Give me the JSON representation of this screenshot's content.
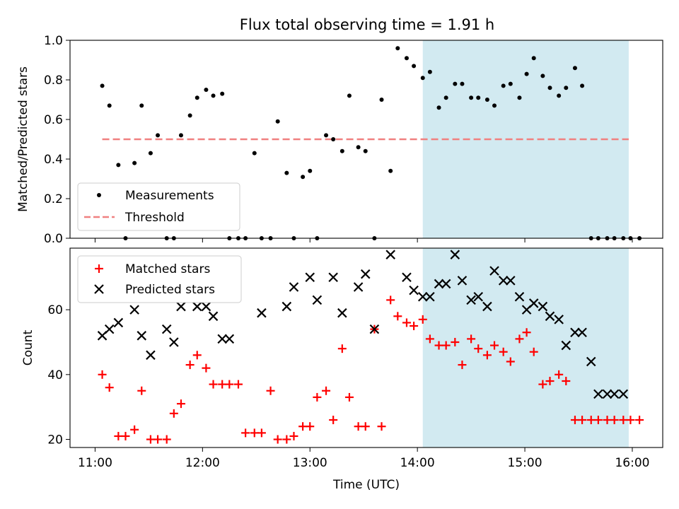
{
  "title": "Flux total observing time = 1.91 h",
  "colors": {
    "measurement": "#000000",
    "threshold": "#f08080",
    "matched": "#ff0000",
    "predicted": "#000000",
    "shade": "#add8e6"
  },
  "chart_data": [
    {
      "type": "scatter",
      "ylabel": "Matched/Predicted stars",
      "xlabel": "",
      "xlim": [
        "10:46",
        "16:17"
      ],
      "ylim": [
        0,
        1
      ],
      "yticks": [
        "0.0",
        "0.2",
        "0.4",
        "0.6",
        "0.8",
        "1.0"
      ],
      "shaded_span": [
        "14:03",
        "15:58"
      ],
      "legend": {
        "placement": "lower-left",
        "entries": [
          "Measurements",
          "Threshold"
        ]
      },
      "threshold": {
        "name": "Threshold",
        "x": [
          "11:04",
          "15:58"
        ],
        "y": 0.5
      },
      "series": [
        {
          "name": "Measurements",
          "x": [
            "11:04",
            "11:08",
            "11:13",
            "11:17",
            "11:22",
            "11:26",
            "11:31",
            "11:35",
            "11:40",
            "11:44",
            "11:48",
            "11:53",
            "11:57",
            "12:02",
            "12:06",
            "12:11",
            "12:15",
            "12:20",
            "12:24",
            "12:29",
            "12:33",
            "12:38",
            "12:42",
            "12:47",
            "12:51",
            "12:56",
            "13:00",
            "13:04",
            "13:09",
            "13:13",
            "13:18",
            "13:22",
            "13:27",
            "13:31",
            "13:36",
            "13:40",
            "13:45",
            "13:49",
            "13:54",
            "13:58",
            "14:03",
            "14:07",
            "14:12",
            "14:16",
            "14:21",
            "14:25",
            "14:30",
            "14:34",
            "14:39",
            "14:43",
            "14:48",
            "14:52",
            "14:57",
            "15:01",
            "15:05",
            "15:10",
            "15:14",
            "15:19",
            "15:23",
            "15:28",
            "15:32",
            "15:37",
            "15:41",
            "15:46",
            "15:50",
            "15:55",
            "15:59",
            "16:04"
          ],
          "values": [
            0.77,
            0.67,
            0.37,
            0.0,
            0.38,
            0.67,
            0.43,
            0.52,
            0.0,
            0.0,
            0.52,
            0.62,
            0.71,
            0.75,
            0.72,
            0.73,
            0.0,
            0.0,
            0.0,
            0.43,
            0.0,
            0.0,
            0.59,
            0.33,
            0.0,
            0.31,
            0.34,
            0.0,
            0.52,
            0.5,
            0.44,
            0.72,
            0.46,
            0.44,
            0.0,
            0.7,
            0.34,
            0.96,
            0.91,
            0.87,
            0.81,
            0.84,
            0.66,
            0.71,
            0.78,
            0.78,
            0.71,
            0.71,
            0.7,
            0.67,
            0.77,
            0.78,
            0.71,
            0.83,
            0.91,
            0.82,
            0.76,
            0.72,
            0.76,
            0.86,
            0.77,
            0.0,
            0.0,
            0.0,
            0.0,
            0.0,
            0.0,
            0.0
          ]
        }
      ]
    },
    {
      "type": "scatter",
      "ylabel": "Count",
      "xlabel": "Time (UTC)",
      "xlim": [
        "10:46",
        "16:17"
      ],
      "ylim": [
        17.5,
        79
      ],
      "yticks": [
        "20",
        "40",
        "60"
      ],
      "xticks": [
        "11:00",
        "12:00",
        "13:00",
        "14:00",
        "15:00",
        "16:00"
      ],
      "shaded_span": [
        "14:03",
        "15:58"
      ],
      "legend": {
        "placement": "upper-left",
        "entries": [
          "Matched stars",
          "Predicted stars"
        ]
      },
      "series": [
        {
          "name": "Matched stars",
          "x": [
            "11:04",
            "11:08",
            "11:13",
            "11:17",
            "11:22",
            "11:26",
            "11:31",
            "11:35",
            "11:40",
            "11:44",
            "11:48",
            "11:53",
            "11:57",
            "12:02",
            "12:06",
            "12:11",
            "12:15",
            "12:20",
            "12:24",
            "12:29",
            "12:33",
            "12:38",
            "12:42",
            "12:47",
            "12:51",
            "12:56",
            "13:00",
            "13:04",
            "13:09",
            "13:13",
            "13:18",
            "13:22",
            "13:27",
            "13:31",
            "13:36",
            "13:40",
            "13:45",
            "13:49",
            "13:54",
            "13:58",
            "14:03",
            "14:07",
            "14:12",
            "14:16",
            "14:21",
            "14:25",
            "14:30",
            "14:34",
            "14:39",
            "14:43",
            "14:48",
            "14:52",
            "14:57",
            "15:01",
            "15:05",
            "15:10",
            "15:14",
            "15:19",
            "15:23",
            "15:28",
            "15:32",
            "15:37",
            "15:41",
            "15:46",
            "15:50",
            "15:55",
            "15:59",
            "16:04"
          ],
          "values": [
            40,
            36,
            21,
            21,
            23,
            35,
            20,
            20,
            20,
            28,
            31,
            43,
            46,
            42,
            37,
            37,
            37,
            37,
            22,
            22,
            22,
            35,
            20,
            20,
            21,
            24,
            24,
            33,
            35,
            26,
            48,
            33,
            24,
            24,
            54,
            24,
            63,
            58,
            56,
            55,
            57,
            51,
            49,
            49,
            50,
            43,
            51,
            48,
            46,
            49,
            47,
            44,
            51,
            53,
            47,
            37,
            38,
            40,
            38,
            26,
            26,
            26,
            26,
            26,
            26,
            26,
            26,
            26
          ]
        },
        {
          "name": "Predicted stars",
          "x": [
            "11:04",
            "11:08",
            "11:13",
            "11:22",
            "11:26",
            "11:31",
            "11:40",
            "11:44",
            "11:48",
            "11:57",
            "12:02",
            "12:06",
            "12:11",
            "12:15",
            "12:33",
            "12:47",
            "12:51",
            "13:00",
            "13:04",
            "13:13",
            "13:18",
            "13:27",
            "13:31",
            "13:36",
            "13:45",
            "13:54",
            "13:58",
            "14:03",
            "14:07",
            "14:12",
            "14:16",
            "14:21",
            "14:25",
            "14:30",
            "14:34",
            "14:39",
            "14:43",
            "14:48",
            "14:52",
            "14:57",
            "15:01",
            "15:05",
            "15:10",
            "15:14",
            "15:19",
            "15:23",
            "15:28",
            "15:32",
            "15:37",
            "15:41",
            "15:46",
            "15:50",
            "15:55"
          ],
          "values": [
            52,
            54,
            56,
            60,
            52,
            46,
            54,
            50,
            61,
            61,
            61,
            58,
            51,
            51,
            59,
            61,
            67,
            70,
            63,
            70,
            59,
            67,
            71,
            54,
            77,
            70,
            66,
            64,
            64,
            68,
            68,
            77,
            69,
            63,
            64,
            61,
            72,
            69,
            69,
            64,
            60,
            62,
            61,
            58,
            57,
            49,
            53,
            53,
            44,
            34,
            34,
            34,
            34
          ]
        }
      ]
    }
  ]
}
